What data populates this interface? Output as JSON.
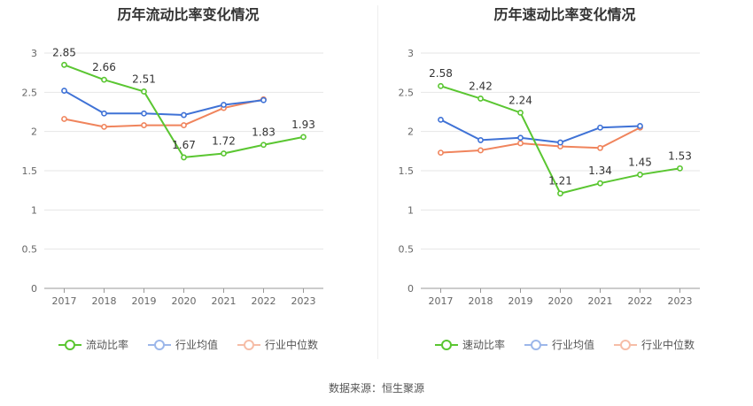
{
  "chart_data": [
    {
      "type": "line",
      "title": "历年流动比率变化情况",
      "categories": [
        "2017",
        "2018",
        "2019",
        "2020",
        "2021",
        "2022",
        "2023"
      ],
      "ylim": [
        0,
        3
      ],
      "yticks": [
        "0",
        "0.5",
        "1",
        "1.5",
        "2",
        "2.5",
        "3"
      ],
      "grid": true,
      "legend_position": "bottom",
      "series": [
        {
          "name": "流动比率",
          "color": "#5ac631",
          "values": [
            2.85,
            2.66,
            2.51,
            1.67,
            1.72,
            1.83,
            1.93
          ],
          "labels": [
            "2.85",
            "2.66",
            "2.51",
            "1.67",
            "1.72",
            "1.83",
            "1.93"
          ]
        },
        {
          "name": "行业均值",
          "color": "#3f72d6",
          "values": [
            2.52,
            2.23,
            2.23,
            2.21,
            2.34,
            2.4,
            null
          ]
        },
        {
          "name": "行业中位数",
          "color": "#f0845c",
          "values": [
            2.16,
            2.06,
            2.08,
            2.08,
            2.3,
            2.41,
            null
          ]
        }
      ]
    },
    {
      "type": "line",
      "title": "历年速动比率变化情况",
      "categories": [
        "2017",
        "2018",
        "2019",
        "2020",
        "2021",
        "2022",
        "2023"
      ],
      "ylim": [
        0,
        3
      ],
      "yticks": [
        "0",
        "0.5",
        "1",
        "1.5",
        "2",
        "2.5",
        "3"
      ],
      "grid": true,
      "legend_position": "bottom",
      "series": [
        {
          "name": "速动比率",
          "color": "#5ac631",
          "values": [
            2.58,
            2.42,
            2.24,
            1.21,
            1.34,
            1.45,
            1.53
          ],
          "labels": [
            "2.58",
            "2.42",
            "2.24",
            "1.21",
            "1.34",
            "1.45",
            "1.53"
          ]
        },
        {
          "name": "行业均值",
          "color": "#3f72d6",
          "values": [
            2.15,
            1.89,
            1.92,
            1.86,
            2.05,
            2.07,
            null
          ]
        },
        {
          "name": "行业中位数",
          "color": "#f0845c",
          "values": [
            1.73,
            1.76,
            1.85,
            1.81,
            1.79,
            2.05,
            null
          ]
        }
      ]
    }
  ],
  "footer": {
    "source": "数据来源：恒生聚源"
  }
}
